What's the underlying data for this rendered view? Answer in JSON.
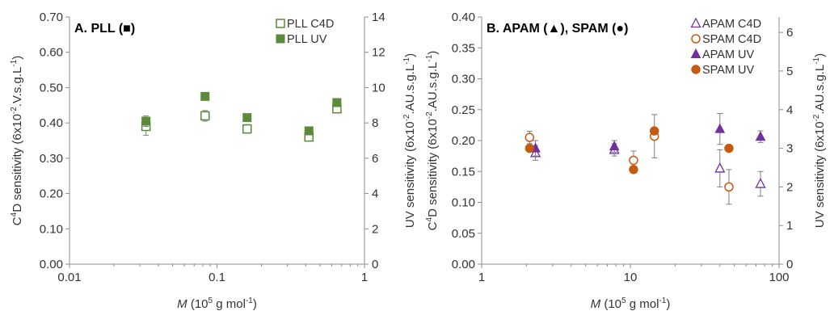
{
  "chart_data": [
    {
      "type": "scatter",
      "panel_title": "A. PLL (■)",
      "x_scale": "log",
      "xlim": [
        0.01,
        1
      ],
      "x_ticks": [
        "0.01",
        "0.1",
        "1"
      ],
      "x_label": {
        "italic": "M",
        "pre": " (10",
        "sup": "5",
        "post": " g mol",
        "sup2": "-1",
        "end": ")"
      },
      "ylim_left": [
        0,
        0.7
      ],
      "y_ticks_left": [
        "0.00",
        "0.10",
        "0.20",
        "0.30",
        "0.40",
        "0.50",
        "0.60",
        "0.70"
      ],
      "y_label_left": {
        "a": "C",
        "sup": "4",
        "b": "D sensitivity (6x10",
        "sup2": "-2",
        "c": ".V.s.g.L",
        "sup3": "-1",
        "d": ")"
      },
      "ylim_right": [
        0,
        14
      ],
      "y_ticks_right": [
        "0",
        "2",
        "4",
        "6",
        "8",
        "10",
        "12",
        "14"
      ],
      "y_label_right": {
        "a": "UV sensitivity (6x10",
        "sup": "-2",
        "b": ".AU.s.g.L",
        "sup2": "-1",
        "c": ")"
      },
      "legend_position": "top-right",
      "series": [
        {
          "name": "PLL C4D",
          "marker": "square-open",
          "color": "#5a8a3a",
          "axis": "left",
          "x": [
            0.033,
            0.083,
            0.16,
            0.42,
            0.65
          ],
          "y": [
            0.39,
            0.42,
            0.383,
            0.36,
            0.44
          ],
          "err": [
            0.025,
            0.015,
            0.012,
            0.01,
            0.012
          ]
        },
        {
          "name": "PLL UV",
          "marker": "square-filled",
          "color": "#5a8a3a",
          "axis": "right",
          "x": [
            0.033,
            0.083,
            0.16,
            0.42,
            0.65
          ],
          "y": [
            8.1,
            9.5,
            8.3,
            7.55,
            9.15
          ],
          "err": [
            0.3,
            0.1,
            0.1,
            0.1,
            0.1
          ]
        }
      ]
    },
    {
      "type": "scatter",
      "panel_title": "B. APAM (▲), SPAM (●)",
      "x_scale": "log",
      "xlim": [
        1,
        100
      ],
      "x_ticks": [
        "1",
        "10",
        "100"
      ],
      "x_label": {
        "italic": "M",
        "pre": " (10",
        "sup": "5",
        "post": " g mol",
        "sup2": "-1",
        "end": ")"
      },
      "ylim_left": [
        0,
        0.4
      ],
      "y_ticks_left": [
        "0.00",
        "0.05",
        "0.10",
        "0.15",
        "0.20",
        "0.25",
        "0.30",
        "0.35",
        "0.40"
      ],
      "y_label_left": {
        "a": "C",
        "sup": "4",
        "b": "D sensitivity (6x10",
        "sup2": "-2",
        "c": ".AU.s.g.L",
        "sup3": "-1",
        "d": ")"
      },
      "ylim_right": [
        0,
        6.4
      ],
      "y_ticks_right": [
        "0",
        "1",
        "2",
        "3",
        "4",
        "5",
        "6"
      ],
      "y_label_right": {
        "a": "UV sensitivity (6x10",
        "sup": "-2",
        "b": ".AU.s.g.L",
        "sup2": "-1",
        "c": ")"
      },
      "legend_position": "top-right",
      "series": [
        {
          "name": "APAM C4D",
          "marker": "triangle-open",
          "color": "#7030a0",
          "axis": "left",
          "x": [
            2.3,
            7.8,
            40,
            75
          ],
          "y": [
            0.18,
            0.185,
            0.155,
            0.13
          ],
          "err": [
            0.012,
            0.01,
            0.03,
            0.02
          ]
        },
        {
          "name": "SPAM C4D",
          "marker": "circle-open",
          "color": "#c55a11",
          "axis": "left",
          "x": [
            2.1,
            10.5,
            14.5,
            46
          ],
          "y": [
            0.205,
            0.168,
            0.207,
            0.125
          ],
          "err": [
            0.01,
            0.015,
            0.035,
            0.028
          ]
        },
        {
          "name": "APAM UV",
          "marker": "triangle-filled",
          "color": "#7030a0",
          "axis": "right",
          "x": [
            2.3,
            7.8,
            40,
            75
          ],
          "y": [
            3.0,
            3.05,
            3.5,
            3.3
          ],
          "err": [
            0.2,
            0.15,
            0.4,
            0.15
          ]
        },
        {
          "name": "SPAM UV",
          "marker": "circle-filled",
          "color": "#c55a11",
          "axis": "right",
          "x": [
            2.1,
            10.5,
            14.5,
            46
          ],
          "y": [
            3.0,
            2.45,
            3.45,
            3.0
          ],
          "err": [
            0,
            0,
            0,
            0
          ]
        }
      ]
    }
  ]
}
